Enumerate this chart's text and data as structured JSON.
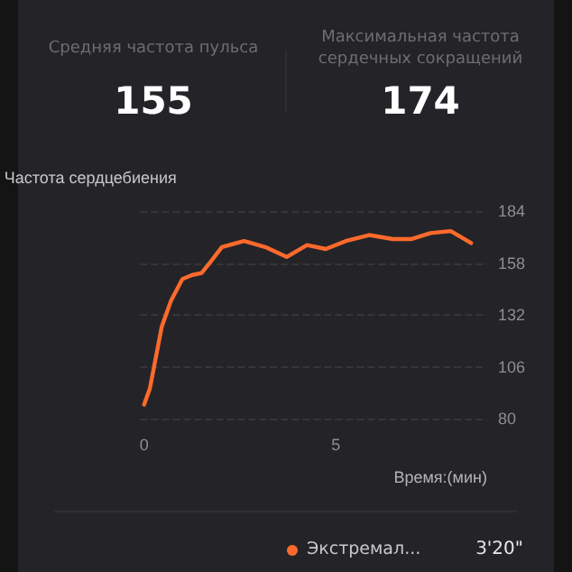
{
  "chart_data": {
    "type": "line",
    "xlabel": "Время:(мин)",
    "ylabel": "Частота сердцебиения",
    "x": [
      0,
      0.15,
      0.46,
      0.7,
      1.0,
      1.26,
      1.5,
      1.75,
      2.03,
      2.61,
      3.16,
      3.72,
      4.25,
      4.74,
      5.26,
      5.87,
      6.49,
      6.98,
      7.47,
      8.0,
      8.53
    ],
    "series": [
      {
        "color": "#ff6a2c",
        "values": [
          87,
          95,
          126,
          139,
          150,
          152,
          153,
          159,
          166,
          169,
          166,
          161,
          167,
          165,
          169,
          172,
          170,
          170,
          173,
          174,
          168
        ]
      }
    ],
    "xlim": [
      -0.1,
      8.95
    ],
    "xticks": [
      0,
      5
    ],
    "ylim": [
      80,
      184
    ],
    "yticks": [
      80,
      106,
      132,
      158,
      184
    ],
    "grid": "y",
    "marker": "none",
    "line_style": "solid",
    "annotations": [
      "Средняя частота пульса",
      "155",
      "Максимальная частота\nсердечных сокращений",
      "174",
      "Экстремал...",
      "3'20\""
    ]
  }
}
